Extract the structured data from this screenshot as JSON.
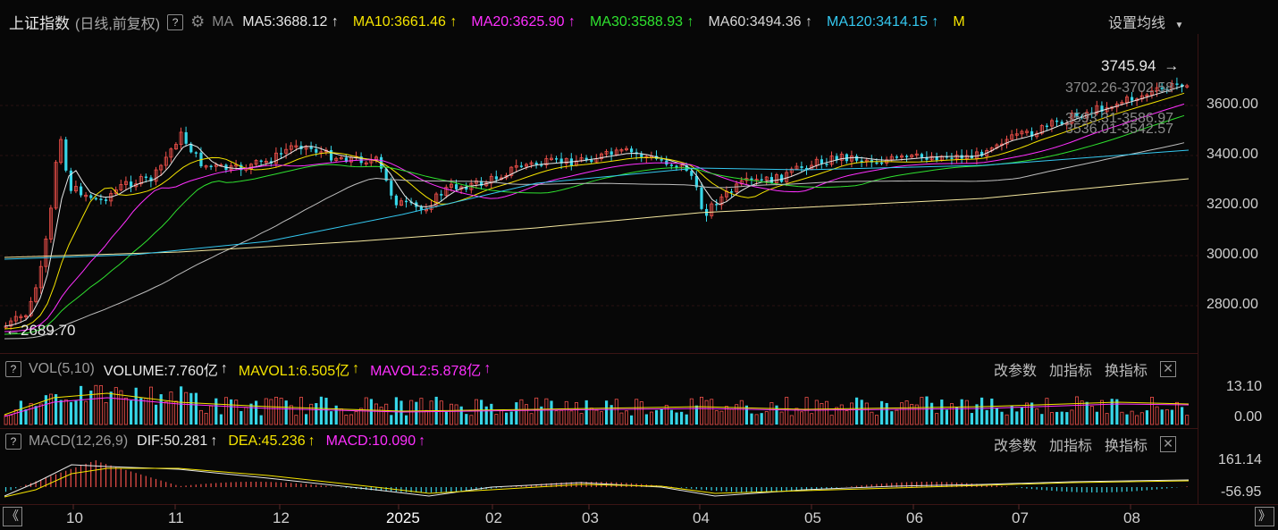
{
  "header": {
    "index_name": "上证指数",
    "period": "(日线,前复权)",
    "help": "?",
    "ma_label": "MA",
    "ma_items": [
      {
        "text": "MA5:3688.12",
        "arrow": "↑",
        "color": "#e8e8e8"
      },
      {
        "text": "MA10:3661.46",
        "arrow": "↑",
        "color": "#f5e400"
      },
      {
        "text": "MA20:3625.90",
        "arrow": "↑",
        "color": "#ff30ff"
      },
      {
        "text": "MA30:3588.93",
        "arrow": "↑",
        "color": "#2fe22f"
      },
      {
        "text": "MA60:3494.36",
        "arrow": "↑",
        "color": "#d8d8d8"
      },
      {
        "text": "MA120:3414.15",
        "arrow": "↑",
        "color": "#34c8f0"
      },
      {
        "text": "M",
        "arrow": "",
        "color": "#f5e400"
      }
    ],
    "settings": "设置均线"
  },
  "price_axis": [
    "3600.00",
    "3400.00",
    "3200.00",
    "3000.00",
    "2800.00"
  ],
  "annotations": {
    "high": "3745.94",
    "low": "2689.70",
    "ma_ranges": [
      "3702.26-3702.58",
      "3593.31-3586.97",
      "3536.01-3542.57"
    ]
  },
  "volume_panel": {
    "help": "?",
    "name": "VOL(5,10)",
    "volume": "VOLUME:7.760亿",
    "mavol1": "MAVOL1:6.505亿",
    "mavol2": "MAVOL2:5.878亿",
    "arrow": "↑",
    "axis": [
      "13.10",
      "0.00"
    ],
    "controls": [
      "改参数",
      "加指标",
      "换指标"
    ],
    "close": "✕"
  },
  "macd_panel": {
    "help": "?",
    "name": "MACD(12,26,9)",
    "dif": "DIF:50.281",
    "dea": "DEA:45.236",
    "macd": "MACD:10.090",
    "arrow": "↑",
    "axis": [
      "161.14",
      "-56.95"
    ],
    "controls": [
      "改参数",
      "加指标",
      "换指标"
    ],
    "close": "✕"
  },
  "time_axis": [
    "10",
    "11",
    "12",
    "2025",
    "02",
    "03",
    "04",
    "05",
    "06",
    "07",
    "08"
  ],
  "nav": {
    "left": "《",
    "right": "》"
  },
  "colors": {
    "up": "#f0504a",
    "down": "#36d6e8",
    "grid": "#3a1414",
    "background": "#070707"
  }
}
